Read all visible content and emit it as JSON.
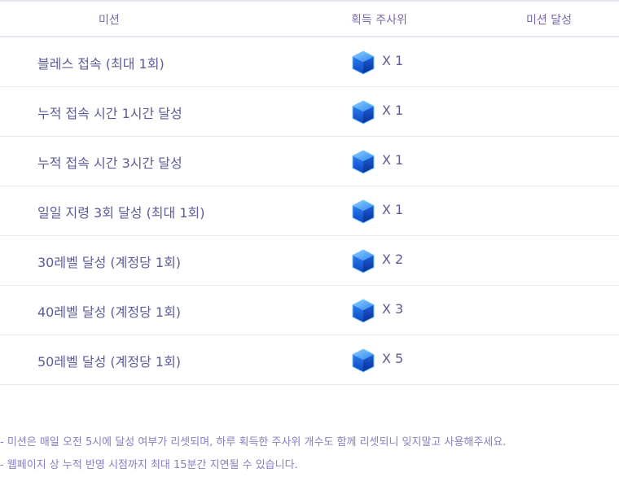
{
  "table": {
    "headers": {
      "mission": "미션",
      "dice": "획득 주사위",
      "achieve": "미션 달성"
    },
    "rows": [
      {
        "title": "블레스 접속 (최대 1회)",
        "qty": "X 1"
      },
      {
        "title": "누적 접속 시간 1시간 달성",
        "qty": "X 1"
      },
      {
        "title": "누적 접속 시간 3시간 달성",
        "qty": "X 1"
      },
      {
        "title": "일일 지령 3회 달성 (최대 1회)",
        "qty": "X 1"
      },
      {
        "title": "30레벨 달성 (계정당 1회)",
        "qty": "X 2"
      },
      {
        "title": "40레벨 달성 (계정당 1회)",
        "qty": "X 3"
      },
      {
        "title": "50레벨 달성 (계정당 1회)",
        "qty": "X 5"
      }
    ]
  },
  "notes": [
    "- 미션은 매일 오전 5시에 달성 여부가 리셋되며, 하루 획득한 주사위 개수도 함께 리셋되니 잊지말고 사용해주세요.",
    "- 웹페이지 상 누적 반영 시점까지 최대 15분간 지연될 수 있습니다."
  ],
  "icons": {
    "dice": "blue-cube-icon"
  },
  "colors": {
    "cube_light": "#4fa8ff",
    "cube_dark": "#0a3fb0",
    "text": "#5d5b98",
    "header": "#7a64b0"
  }
}
